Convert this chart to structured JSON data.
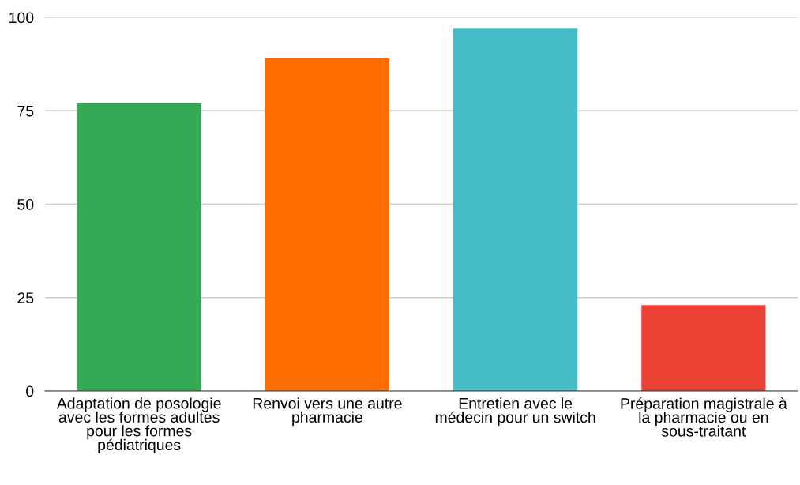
{
  "chart_data": {
    "type": "bar",
    "categories": [
      "Adaptation de posologie avec les formes adultes pour les formes pédiatriques",
      "Renvoi vers une autre pharmacie",
      "Entretien avec le médecin pour un switch",
      "Préparation magistrale à la pharmacie ou en sous-traitant"
    ],
    "values": [
      77,
      89,
      97,
      23
    ],
    "colors": [
      "#34a853",
      "#ff6d01",
      "#46bdc6",
      "#ea4335"
    ],
    "ylim": [
      0,
      100
    ],
    "yticks": [
      0,
      25,
      50,
      75,
      100
    ],
    "grid": "y",
    "legend": false
  }
}
